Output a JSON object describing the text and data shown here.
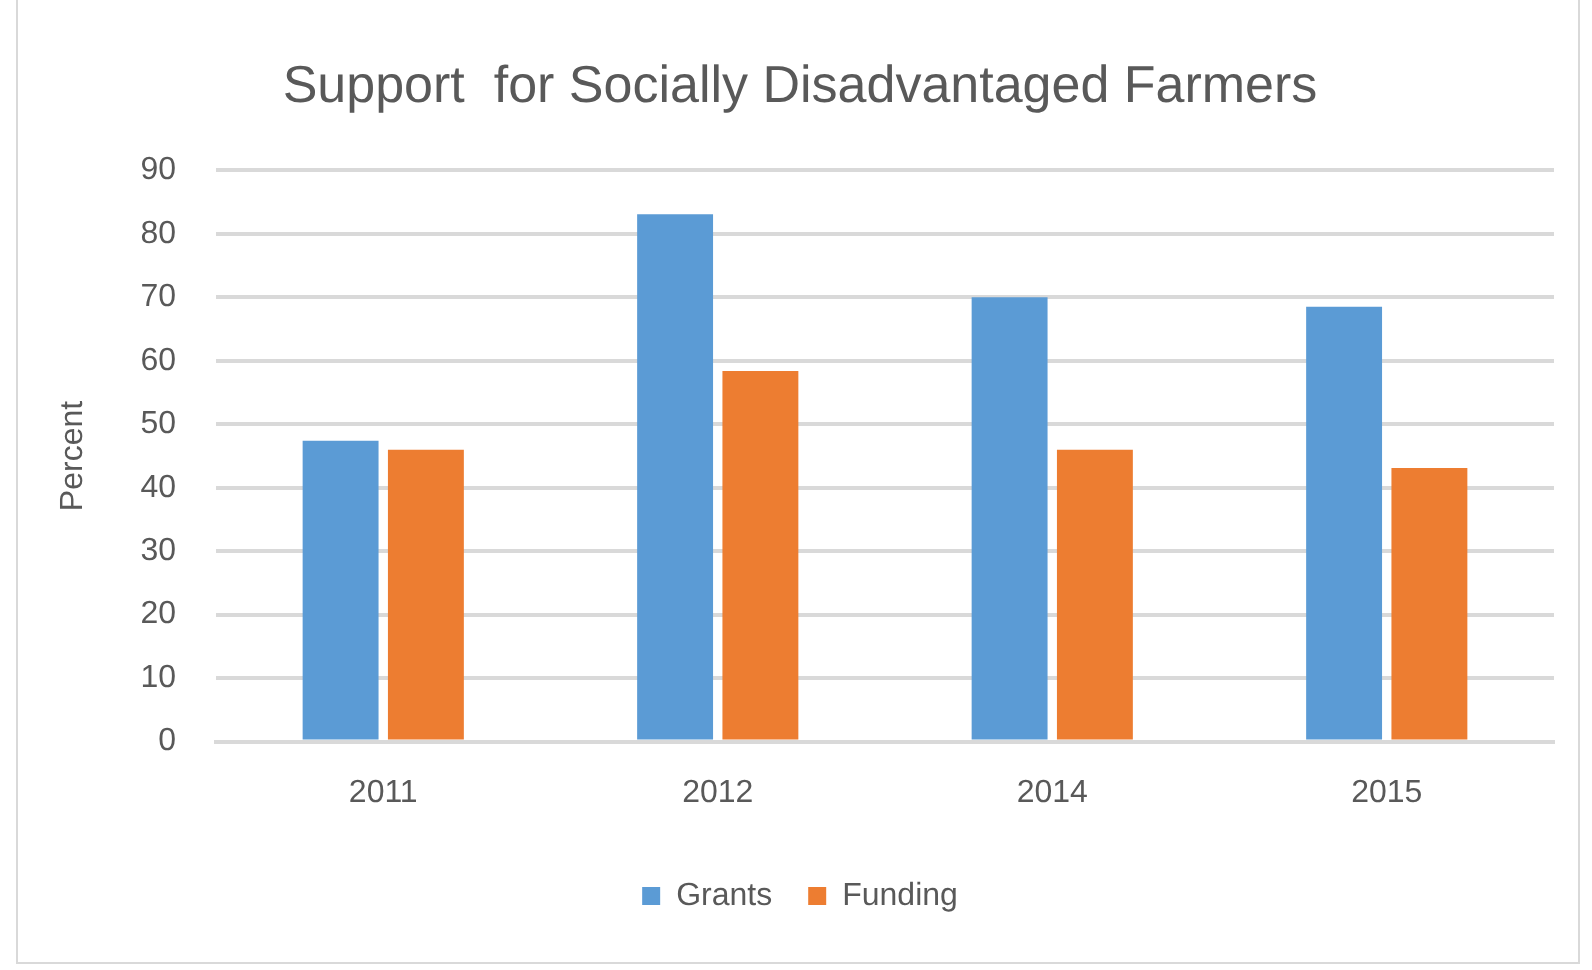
{
  "chart_data": {
    "type": "bar",
    "title": "Support  for Socially Disadvantaged Farmers",
    "ylabel": "Percent",
    "categories": [
      "2011",
      "2012",
      "2014",
      "2015"
    ],
    "series": [
      {
        "name": "Grants",
        "color": "#5b9bd5",
        "values": [
          47.4,
          83.1,
          70.0,
          68.5
        ]
      },
      {
        "name": "Funding",
        "color": "#ed7d31",
        "values": [
          46.0,
          58.4,
          46.0,
          43.1
        ]
      }
    ],
    "ylim": [
      0,
      90
    ],
    "yticks": [
      0,
      10,
      20,
      30,
      40,
      50,
      60,
      70,
      80,
      90
    ],
    "grid": "y",
    "legend": "bottom"
  }
}
